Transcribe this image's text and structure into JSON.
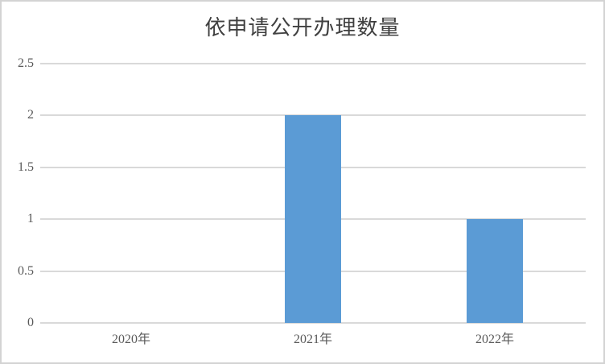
{
  "chart_data": {
    "type": "bar",
    "title": "依申请公开办理数量",
    "categories": [
      "2020年",
      "2021年",
      "2022年"
    ],
    "values": [
      0,
      2,
      1
    ],
    "xlabel": "",
    "ylabel": "",
    "ylim": [
      0,
      2.5
    ],
    "ytick_step": 0.5,
    "ytick_labels": [
      "0",
      "0.5",
      "1",
      "1.5",
      "2",
      "2.5"
    ],
    "grid": true,
    "legend": false,
    "colors": {
      "bar": "#5B9BD5",
      "gridline": "#D9D9D9",
      "axis_label_text": "#595959",
      "title_text": "#404040",
      "frame_border": "#D3D3D3",
      "background": "#FFFFFF"
    }
  }
}
